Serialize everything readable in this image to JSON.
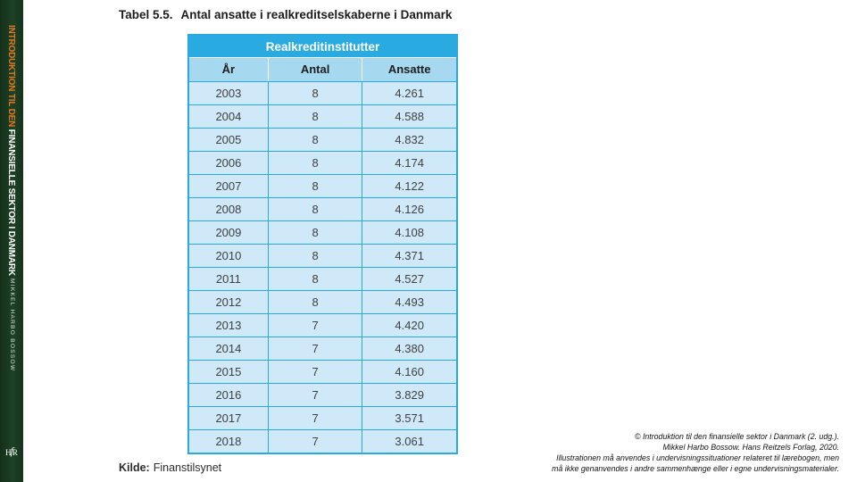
{
  "sidebar": {
    "series_title_part1": "INTRODUKTION TIL DEN",
    "series_title_part2": " FINANSIELLE SEKTOR I DANMARK",
    "author": "MIKKEL HARBO BOSSOW",
    "logo": {
      "left": "H",
      "mid": "f",
      "right": "R"
    },
    "colors": {
      "background": "#1d4226",
      "accent": "#e5761f",
      "title_secondary": "#ffffff"
    }
  },
  "title": {
    "label": "Tabel 5.5.",
    "text": "Antal ansatte i realkreditselskaberne i Danmark"
  },
  "table": {
    "header": "Realkreditinstitutter",
    "columns": [
      "År",
      "Antal",
      "Ansatte"
    ],
    "rows": [
      {
        "year": "2003",
        "antal": "8",
        "ansatte": "4.261"
      },
      {
        "year": "2004",
        "antal": "8",
        "ansatte": "4.588"
      },
      {
        "year": "2005",
        "antal": "8",
        "ansatte": "4.832"
      },
      {
        "year": "2006",
        "antal": "8",
        "ansatte": "4.174"
      },
      {
        "year": "2007",
        "antal": "8",
        "ansatte": "4.122"
      },
      {
        "year": "2008",
        "antal": "8",
        "ansatte": "4.126"
      },
      {
        "year": "2009",
        "antal": "8",
        "ansatte": "4.108"
      },
      {
        "year": "2010",
        "antal": "8",
        "ansatte": "4.371"
      },
      {
        "year": "2011",
        "antal": "8",
        "ansatte": "4.527"
      },
      {
        "year": "2012",
        "antal": "8",
        "ansatte": "4.493"
      },
      {
        "year": "2013",
        "antal": "7",
        "ansatte": "4.420"
      },
      {
        "year": "2014",
        "antal": "7",
        "ansatte": "4.380"
      },
      {
        "year": "2015",
        "antal": "7",
        "ansatte": "4.160"
      },
      {
        "year": "2016",
        "antal": "7",
        "ansatte": "3.829"
      },
      {
        "year": "2017",
        "antal": "7",
        "ansatte": "3.571"
      },
      {
        "year": "2018",
        "antal": "7",
        "ansatte": "3.061"
      }
    ],
    "colors": {
      "header_bg": "#29abe2",
      "subheader_bg": "#a6d8f0",
      "cell_bg": "#cfe9f8",
      "border": "#2aa9e0"
    }
  },
  "source": {
    "label": "Kilde:",
    "text": "Finanstilsynet"
  },
  "copyright": {
    "lines": [
      "© Introduktion til den finansielle sektor i Danmark (2. udg.).",
      "Mikkel Harbo Bossow. Hans Reitzels Forlag, 2020.",
      "Illustrationen må anvendes i undervisningssituationer relateret til lærebogen, men",
      "må ikke genanvendes i andre sammenhænge eller i egne undervisningsmaterialer."
    ]
  }
}
